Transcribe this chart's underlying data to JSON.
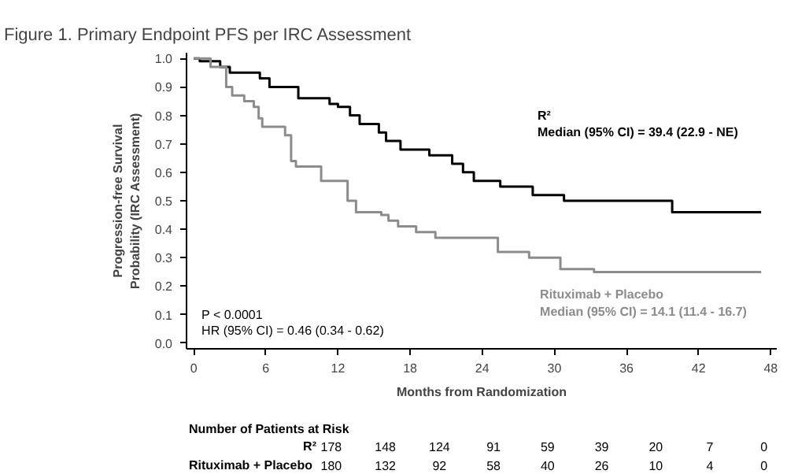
{
  "chart_data": {
    "type": "step",
    "title": "Figure 1. Primary Endpoint PFS per IRC Assessment",
    "xlabel": "Months from Randomization",
    "ylabel": "Progression-free Survival Probability (IRC Assessment)",
    "xlim": [
      -0.6,
      48.5
    ],
    "ylim": [
      -0.02,
      1.02
    ],
    "xticks": [
      0,
      6,
      12,
      18,
      24,
      30,
      36,
      42,
      48
    ],
    "yticks": [
      {
        "value": 0,
        "label": "0.0"
      },
      0.1,
      0.2,
      0.3,
      0.4,
      0.5,
      0.6,
      0.7,
      0.8,
      0.9,
      {
        "value": 1,
        "label": "1.0"
      }
    ],
    "grid": false,
    "marker": "none",
    "line_style": "solid",
    "series": [
      {
        "name": "R²",
        "color": "#000000",
        "x": [
          0,
          0.5,
          2.2,
          3.0,
          5.5,
          6.3,
          8.7,
          11.3,
          12,
          13.0,
          13.8,
          15.4,
          16.0,
          17.2,
          19.6,
          21.5,
          22.4,
          23.3,
          25.5,
          28.2,
          30.8,
          39.8,
          47.2
        ],
        "values": [
          1.0,
          0.99,
          0.97,
          0.95,
          0.93,
          0.9,
          0.86,
          0.84,
          0.83,
          0.8,
          0.77,
          0.74,
          0.71,
          0.68,
          0.66,
          0.63,
          0.6,
          0.57,
          0.55,
          0.52,
          0.5,
          0.46,
          0.46
        ]
      },
      {
        "name": "Rituximab + Placebo",
        "color": "#8c8c8c",
        "x": [
          0,
          1.4,
          2.7,
          3.2,
          4.2,
          5.0,
          5.4,
          5.7,
          7.6,
          8.1,
          8.5,
          10.6,
          12.8,
          13.5,
          15.6,
          16.2,
          17.0,
          18.5,
          20.1,
          25.3,
          27.9,
          30.5,
          33.3,
          47.2
        ],
        "values": [
          1.0,
          0.97,
          0.9,
          0.87,
          0.85,
          0.83,
          0.79,
          0.76,
          0.73,
          0.64,
          0.62,
          0.57,
          0.5,
          0.46,
          0.45,
          0.43,
          0.41,
          0.39,
          0.37,
          0.32,
          0.3,
          0.26,
          0.25,
          0.25
        ]
      }
    ],
    "annotations": [
      "P < 0.0001",
      "HR (95% CI) = 0.46 (0.34 - 0.62)",
      "Median (95% CI) = 39.4 (22.9 - NE)",
      "Median (95% CI) = 14.1 (11.4 - 16.7)",
      "Number of Patients at Risk",
      "178",
      "148",
      "124",
      "91",
      "59",
      "39",
      "20",
      "7",
      "0",
      "180",
      "132",
      "92",
      "58",
      "40",
      "26",
      "10",
      "4",
      "0"
    ]
  }
}
